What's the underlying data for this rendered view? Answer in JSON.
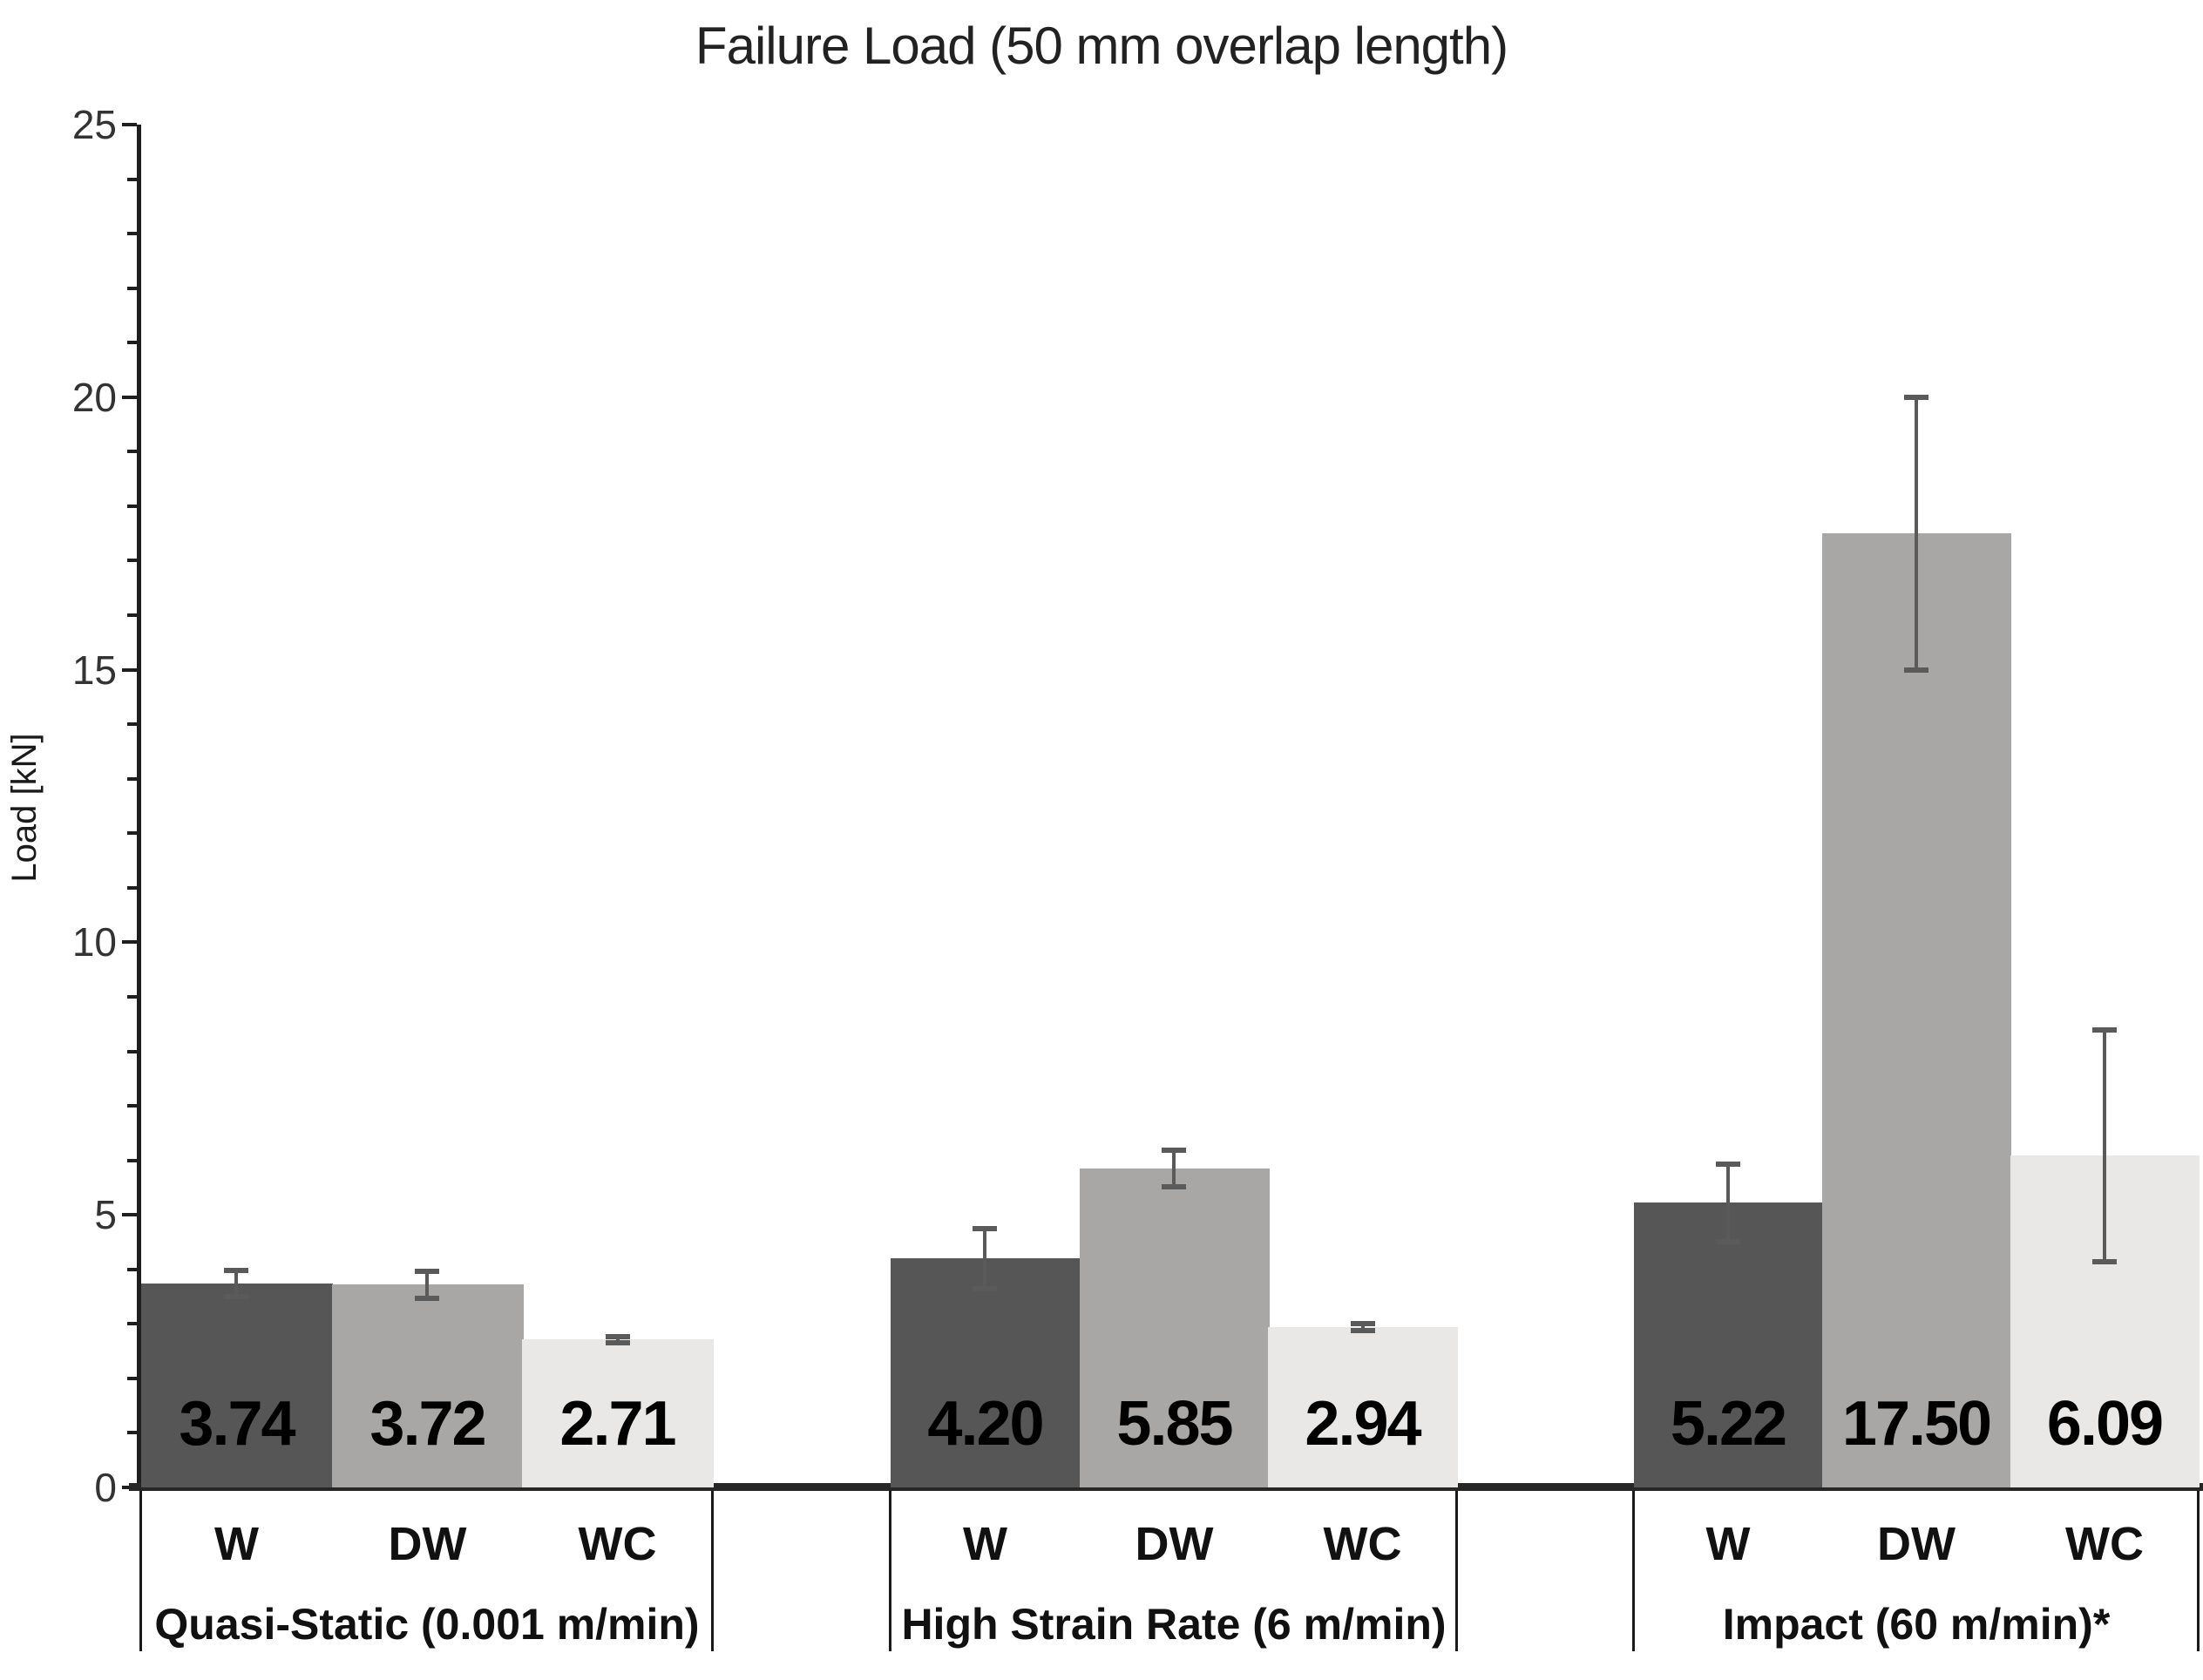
{
  "chart_data": {
    "type": "bar",
    "title": "Failure Load (50 mm overlap length)",
    "xlabel": "",
    "ylabel": "Load [kN]",
    "ylim": [
      0,
      25
    ],
    "yticks": [
      0,
      5,
      10,
      15,
      20,
      25
    ],
    "minor_tick_step": 1,
    "grid": false,
    "legend_position": "none",
    "bar_categories": [
      "W",
      "DW",
      "WC"
    ],
    "groups": [
      {
        "label": "Quasi-Static (0.001 m/min)",
        "bars": [
          {
            "category": "W",
            "value": 3.74,
            "value_label": "3.74",
            "err_up": 0.24,
            "err_down": 0.24
          },
          {
            "category": "DW",
            "value": 3.72,
            "value_label": "3.72",
            "err_up": 0.25,
            "err_down": 0.25
          },
          {
            "category": "WC",
            "value": 2.71,
            "value_label": "2.71",
            "err_up": 0.05,
            "err_down": 0.05
          }
        ]
      },
      {
        "label": "High Strain Rate (6 m/min)",
        "bars": [
          {
            "category": "W",
            "value": 4.2,
            "value_label": "4.20",
            "err_up": 0.55,
            "err_down": 0.55
          },
          {
            "category": "DW",
            "value": 5.85,
            "value_label": "5.85",
            "err_up": 0.33,
            "err_down": 0.33
          },
          {
            "category": "WC",
            "value": 2.94,
            "value_label": "2.94",
            "err_up": 0.06,
            "err_down": 0.06
          }
        ]
      },
      {
        "label": "Impact (60 m/min)*",
        "bars": [
          {
            "category": "W",
            "value": 5.22,
            "value_label": "5.22",
            "err_up": 0.71,
            "err_down": 0.71
          },
          {
            "category": "DW",
            "value": 17.5,
            "value_label": "17.50",
            "err_up": 2.5,
            "err_down": 2.5
          },
          {
            "category": "WC",
            "value": 6.09,
            "value_label": "6.09",
            "err_up": 2.3,
            "err_down": 1.95
          }
        ]
      }
    ],
    "series_colors": {
      "W": "#565656",
      "DW": "#a9a7a5",
      "WC": "#e9e8e7"
    },
    "error_bar_color": "#5a5a5a",
    "axis_color": "#1f1f1f",
    "baseline_color": "#262626",
    "divider_color": "#1a1a1a"
  }
}
